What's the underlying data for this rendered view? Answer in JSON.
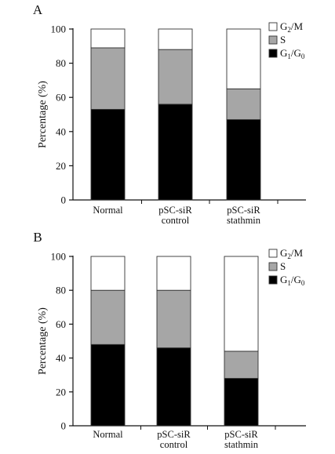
{
  "chart_data": [
    {
      "panel_label": "A",
      "type": "bar",
      "stacked": true,
      "categories": [
        [
          "Normal"
        ],
        [
          "pSC-siR",
          "control"
        ],
        [
          "pSC-siR",
          "stathmin"
        ]
      ],
      "ylabel": "Percentage (%)",
      "ylim": [
        0,
        100
      ],
      "yticks": [
        0,
        20,
        40,
        60,
        80,
        100
      ],
      "legend_position": "top-right",
      "series": [
        {
          "name": "G1/G0",
          "name_parts": [
            "G",
            "1",
            "/G",
            "0"
          ],
          "color": "#000000",
          "values": [
            53,
            56,
            47
          ]
        },
        {
          "name": "S",
          "name_parts": [
            "S"
          ],
          "color": "#a6a6a6",
          "values": [
            36,
            32,
            18
          ]
        },
        {
          "name": "G2/M",
          "name_parts": [
            "G",
            "2",
            "/M"
          ],
          "color": "#ffffff",
          "values": [
            11,
            12,
            35
          ]
        }
      ]
    },
    {
      "panel_label": "B",
      "type": "bar",
      "stacked": true,
      "categories": [
        [
          "Normal"
        ],
        [
          "pSC-siR",
          "control"
        ],
        [
          "pSC-siR",
          "stathmin"
        ]
      ],
      "ylabel": "Percentage (%)",
      "ylim": [
        0,
        100
      ],
      "yticks": [
        0,
        20,
        40,
        60,
        80,
        100
      ],
      "legend_position": "top-right",
      "series": [
        {
          "name": "G1/G0",
          "name_parts": [
            "G",
            "1",
            "/G",
            "0"
          ],
          "color": "#000000",
          "values": [
            48,
            46,
            28
          ]
        },
        {
          "name": "S",
          "name_parts": [
            "S"
          ],
          "color": "#a6a6a6",
          "values": [
            32,
            34,
            16
          ]
        },
        {
          "name": "G2/M",
          "name_parts": [
            "G",
            "2",
            "/M"
          ],
          "color": "#ffffff",
          "values": [
            20,
            20,
            56
          ]
        }
      ]
    }
  ]
}
